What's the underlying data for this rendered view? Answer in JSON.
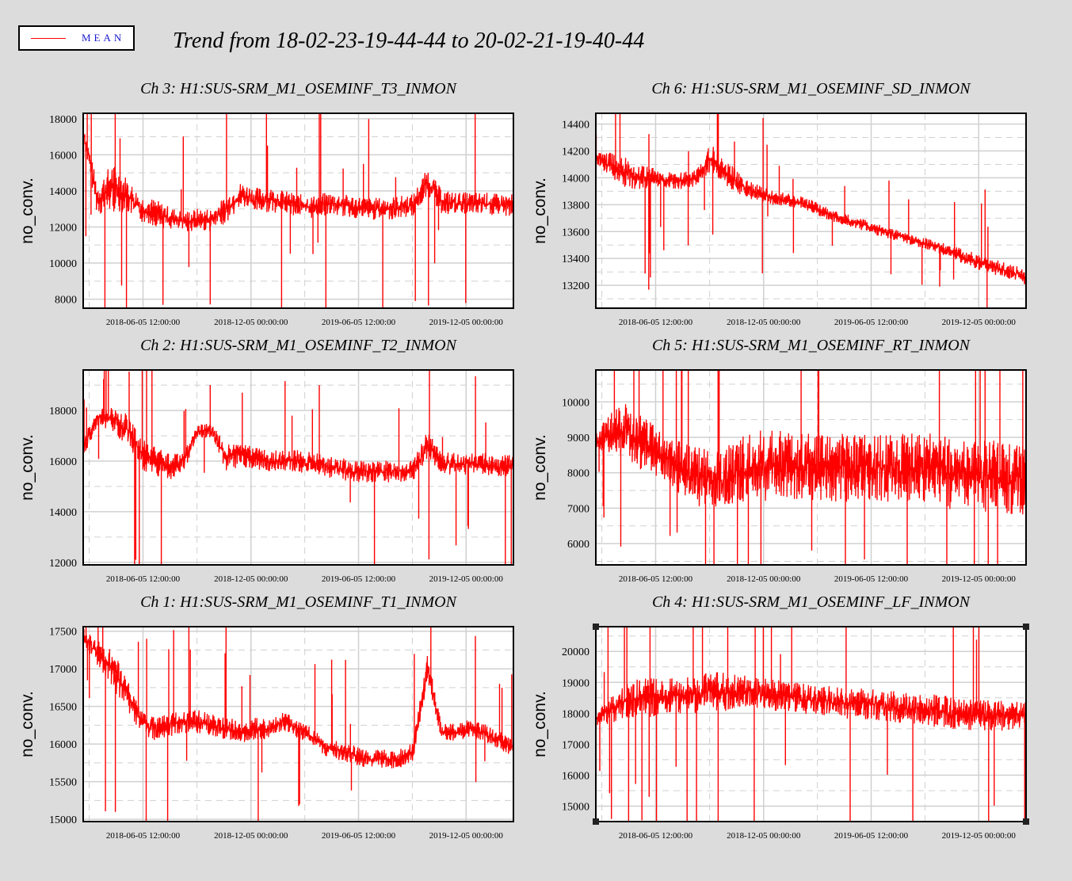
{
  "legend": {
    "label": "MEAN",
    "color": "#ff0000"
  },
  "title": "Trend from 18-02-23-19-44-44 to 20-02-21-19-40-44",
  "chart_data": [
    {
      "type": "line",
      "title": "Ch 3: H1:SUS-SRM_M1_OSEMINF_T3_INMON",
      "ylabel": "no_conv.",
      "xticks": [
        "2018-06-05 12:00:00",
        "2018-12-05 00:00:00",
        "2019-06-05 12:00:00",
        "2019-12-05 00:00:00"
      ],
      "yticks": [
        8000,
        10000,
        12000,
        14000,
        16000,
        18000
      ],
      "ylim": [
        7500,
        18300
      ],
      "grid": true,
      "series": [
        {
          "color": "#ff0000",
          "x": [
            0,
            0.03,
            0.06,
            0.1,
            0.13,
            0.16,
            0.2,
            0.23,
            0.26,
            0.3,
            0.33,
            0.37,
            0.4,
            0.43,
            0.47,
            0.5,
            0.53,
            0.57,
            0.6,
            0.63,
            0.67,
            0.7,
            0.73,
            0.77,
            0.8,
            0.83,
            0.87,
            0.9,
            0.93,
            0.97,
            1.0
          ],
          "y": [
            17300,
            13500,
            14200,
            13800,
            13000,
            12800,
            12500,
            12300,
            12400,
            12400,
            13000,
            13800,
            13500,
            13500,
            13400,
            13200,
            13100,
            13300,
            13200,
            13100,
            13000,
            13000,
            13100,
            13200,
            14500,
            13400,
            13300,
            13300,
            13300,
            13200,
            13200
          ],
          "band": [
            800,
            1400,
            2200,
            1600,
            1200,
            1200,
            1000,
            900,
            1000,
            1000,
            1200,
            1100,
            1100,
            1100,
            1000,
            1000,
            1000,
            1000,
            1000,
            1000,
            1000,
            1000,
            1000,
            1000,
            1200,
            1100,
            1000,
            1000,
            1000,
            1000,
            1000
          ]
        }
      ]
    },
    {
      "type": "line",
      "title": "Ch 6: H1:SUS-SRM_M1_OSEMINF_SD_INMON",
      "ylabel": "no_conv.",
      "xticks": [
        "2018-06-05 12:00:00",
        "2018-12-05 00:00:00",
        "2019-06-05 12:00:00",
        "2019-12-05 00:00:00"
      ],
      "yticks": [
        13200,
        13400,
        13600,
        13800,
        14000,
        14200,
        14400
      ],
      "ylim": [
        13030,
        14480
      ],
      "grid": true,
      "series": [
        {
          "color": "#ff0000",
          "x": [
            0,
            0.03,
            0.06,
            0.1,
            0.13,
            0.16,
            0.2,
            0.23,
            0.26,
            0.3,
            0.33,
            0.37,
            0.4,
            0.43,
            0.47,
            0.5,
            0.53,
            0.57,
            0.6,
            0.63,
            0.67,
            0.7,
            0.73,
            0.77,
            0.8,
            0.83,
            0.87,
            0.9,
            0.93,
            0.97,
            1.0
          ],
          "y": [
            14150,
            14100,
            14050,
            14000,
            14000,
            13980,
            13980,
            14000,
            14150,
            14050,
            13950,
            13900,
            13860,
            13840,
            13820,
            13790,
            13740,
            13700,
            13670,
            13640,
            13600,
            13570,
            13540,
            13510,
            13480,
            13440,
            13400,
            13360,
            13330,
            13300,
            13260
          ],
          "band": [
            80,
            140,
            200,
            150,
            120,
            100,
            100,
            100,
            160,
            160,
            130,
            100,
            90,
            80,
            80,
            80,
            70,
            70,
            70,
            70,
            70,
            70,
            70,
            70,
            70,
            80,
            90,
            90,
            90,
            90,
            90
          ]
        }
      ]
    },
    {
      "type": "line",
      "title": "Ch 2: H1:SUS-SRM_M1_OSEMINF_T2_INMON",
      "ylabel": "no_conv.",
      "xticks": [
        "2018-06-05 12:00:00",
        "2018-12-05 00:00:00",
        "2019-06-05 12:00:00",
        "2019-12-05 00:00:00"
      ],
      "yticks": [
        12000,
        14000,
        16000,
        18000
      ],
      "ylim": [
        11900,
        19600
      ],
      "grid": true,
      "series": [
        {
          "color": "#ff0000",
          "x": [
            0,
            0.03,
            0.06,
            0.1,
            0.13,
            0.16,
            0.2,
            0.23,
            0.26,
            0.3,
            0.33,
            0.37,
            0.4,
            0.43,
            0.47,
            0.5,
            0.53,
            0.57,
            0.6,
            0.63,
            0.67,
            0.7,
            0.73,
            0.77,
            0.8,
            0.83,
            0.87,
            0.9,
            0.93,
            0.97,
            1.0
          ],
          "y": [
            16500,
            17700,
            17700,
            17300,
            16300,
            16000,
            15800,
            16000,
            17200,
            17200,
            16100,
            16300,
            16100,
            16000,
            16000,
            16000,
            15900,
            15800,
            15700,
            15600,
            15600,
            15600,
            15600,
            15600,
            16600,
            15900,
            15900,
            15900,
            15900,
            15800,
            15800
          ],
          "band": [
            700,
            500,
            800,
            1200,
            1000,
            900,
            900,
            700,
            400,
            500,
            900,
            800,
            700,
            700,
            700,
            700,
            700,
            700,
            700,
            700,
            700,
            700,
            700,
            700,
            900,
            700,
            700,
            700,
            700,
            700,
            700
          ]
        }
      ]
    },
    {
      "type": "line",
      "title": "Ch 5: H1:SUS-SRM_M1_OSEMINF_RT_INMON",
      "ylabel": "no_conv.",
      "xticks": [
        "2018-06-05 12:00:00",
        "2018-12-05 00:00:00",
        "2019-06-05 12:00:00",
        "2019-12-05 00:00:00"
      ],
      "yticks": [
        6000,
        7000,
        8000,
        9000,
        10000
      ],
      "ylim": [
        5400,
        10900
      ],
      "grid": true,
      "series": [
        {
          "color": "#ff0000",
          "x": [
            0,
            0.03,
            0.06,
            0.1,
            0.13,
            0.16,
            0.2,
            0.23,
            0.26,
            0.3,
            0.33,
            0.37,
            0.4,
            0.43,
            0.47,
            0.5,
            0.53,
            0.57,
            0.6,
            0.63,
            0.67,
            0.7,
            0.73,
            0.77,
            0.8,
            0.83,
            0.87,
            0.9,
            0.93,
            0.97,
            1.0
          ],
          "y": [
            8900,
            9100,
            9200,
            8900,
            8700,
            8400,
            8100,
            7900,
            7800,
            7800,
            8100,
            8200,
            8200,
            8200,
            8200,
            8150,
            8150,
            8150,
            8150,
            8150,
            8150,
            8150,
            8150,
            8150,
            8100,
            7900,
            7900,
            7900,
            7900,
            7800,
            7800
          ],
          "band": [
            400,
            900,
            1200,
            1300,
            1200,
            1100,
            1300,
            1300,
            1400,
            1400,
            1600,
            1600,
            1600,
            1550,
            1550,
            1550,
            1550,
            1550,
            1550,
            1550,
            1550,
            1550,
            1550,
            1550,
            1600,
            1600,
            1600,
            1600,
            1600,
            1600,
            1600
          ]
        }
      ]
    },
    {
      "type": "line",
      "title": "Ch 1: H1:SUS-SRM_M1_OSEMINF_T1_INMON",
      "ylabel": "no_conv.",
      "xticks": [
        "2018-06-05 12:00:00",
        "2018-12-05 00:00:00",
        "2019-06-05 12:00:00",
        "2019-12-05 00:00:00"
      ],
      "yticks": [
        15000,
        15500,
        16000,
        16500,
        17000,
        17500
      ],
      "ylim": [
        14970,
        17560
      ],
      "grid": true,
      "series": [
        {
          "color": "#ff0000",
          "x": [
            0,
            0.03,
            0.06,
            0.1,
            0.13,
            0.16,
            0.2,
            0.23,
            0.26,
            0.3,
            0.33,
            0.37,
            0.4,
            0.43,
            0.47,
            0.5,
            0.53,
            0.57,
            0.6,
            0.63,
            0.67,
            0.7,
            0.73,
            0.77,
            0.8,
            0.83,
            0.87,
            0.9,
            0.93,
            0.97,
            1.0
          ],
          "y": [
            17450,
            17200,
            17000,
            16700,
            16300,
            16200,
            16250,
            16300,
            16300,
            16250,
            16200,
            16150,
            16200,
            16200,
            16300,
            16200,
            16100,
            15950,
            15900,
            15850,
            15800,
            15800,
            15800,
            15900,
            17000,
            16150,
            16150,
            16200,
            16150,
            16050,
            15950
          ],
          "band": [
            150,
            300,
            400,
            350,
            250,
            250,
            250,
            250,
            250,
            250,
            250,
            250,
            250,
            200,
            200,
            200,
            200,
            200,
            200,
            200,
            200,
            200,
            200,
            200,
            300,
            200,
            200,
            200,
            200,
            200,
            200
          ]
        }
      ]
    },
    {
      "type": "line",
      "title": "Ch 4: H1:SUS-SRM_M1_OSEMINF_LF_INMON",
      "ylabel": "no_conv.",
      "xticks": [
        "2018-06-05 12:00:00",
        "2018-12-05 00:00:00",
        "2019-06-05 12:00:00",
        "2019-12-05 00:00:00"
      ],
      "yticks": [
        15000,
        16000,
        17000,
        18000,
        19000,
        20000
      ],
      "ylim": [
        14500,
        20800
      ],
      "grid": true,
      "series": [
        {
          "color": "#ff0000",
          "x": [
            0,
            0.03,
            0.06,
            0.1,
            0.13,
            0.16,
            0.2,
            0.23,
            0.26,
            0.3,
            0.33,
            0.37,
            0.4,
            0.43,
            0.47,
            0.5,
            0.53,
            0.57,
            0.6,
            0.63,
            0.67,
            0.7,
            0.73,
            0.77,
            0.8,
            0.83,
            0.87,
            0.9,
            0.93,
            0.97,
            1.0
          ],
          "y": [
            17800,
            18100,
            18400,
            18500,
            18500,
            18500,
            18600,
            18600,
            18700,
            18700,
            18700,
            18650,
            18600,
            18550,
            18500,
            18450,
            18400,
            18350,
            18300,
            18300,
            18250,
            18200,
            18150,
            18100,
            18050,
            18000,
            17950,
            17950,
            17900,
            17900,
            17900
          ],
          "band": [
            300,
            700,
            900,
            1000,
            1000,
            1000,
            1000,
            1000,
            1000,
            1000,
            900,
            850,
            800,
            800,
            800,
            800,
            800,
            800,
            800,
            800,
            800,
            800,
            800,
            800,
            900,
            800,
            800,
            800,
            800,
            800,
            800
          ]
        }
      ]
    }
  ]
}
